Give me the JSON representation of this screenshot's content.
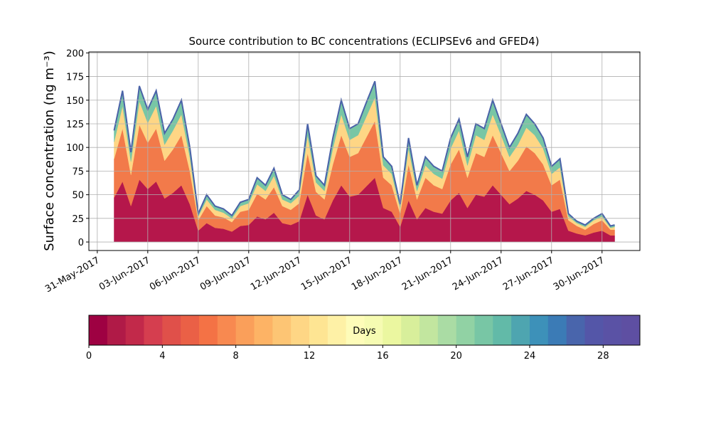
{
  "chart_data": {
    "type": "area",
    "title": "Source contribution to BC concentrations (ECLIPSEv6 and GFED4)",
    "ylabel": "Surface concentration (ng m⁻³)",
    "x": [
      1,
      1.5,
      2,
      2.5,
      3,
      3.5,
      4,
      4.5,
      5,
      5.5,
      6,
      6.5,
      7,
      7.5,
      8,
      8.5,
      9,
      9.5,
      10,
      10.5,
      11,
      11.5,
      12,
      12.5,
      13,
      13.5,
      14,
      14.5,
      15,
      15.5,
      16,
      16.5,
      17,
      17.5,
      18,
      18.5,
      19,
      19.5,
      20,
      20.5,
      21,
      21.5,
      22,
      22.5,
      23,
      23.5,
      24,
      24.5,
      25,
      25.5,
      26,
      26.5,
      27,
      27.5,
      28,
      28.5,
      29,
      29.5,
      30,
      30.5,
      30.75
    ],
    "xlim": [
      -0.5,
      32.25
    ],
    "xticks": [
      {
        "value": 0,
        "label": "31-May-2017"
      },
      {
        "value": 3,
        "label": "03-Jun-2017"
      },
      {
        "value": 6,
        "label": "06-Jun-2017"
      },
      {
        "value": 9,
        "label": "09-Jun-2017"
      },
      {
        "value": 12,
        "label": "12-Jun-2017"
      },
      {
        "value": 15,
        "label": "15-Jun-2017"
      },
      {
        "value": 18,
        "label": "18-Jun-2017"
      },
      {
        "value": 21,
        "label": "21-Jun-2017"
      },
      {
        "value": 24,
        "label": "24-Jun-2017"
      },
      {
        "value": 27,
        "label": "27-Jun-2017"
      },
      {
        "value": 30,
        "label": "30-Jun-2017"
      }
    ],
    "ylim": [
      -9,
      201
    ],
    "yticks": [
      0,
      25,
      50,
      75,
      100,
      125,
      150,
      175,
      200
    ],
    "grid": true,
    "series": [
      {
        "color": "#b5174b",
        "values": [
          47,
          64,
          38,
          66,
          56,
          64,
          46,
          52,
          60,
          40,
          12,
          20,
          15,
          14,
          11,
          17,
          18,
          27,
          24,
          31,
          20,
          18,
          22,
          50,
          28,
          24,
          44,
          60,
          48,
          50,
          59,
          68,
          36,
          32,
          16,
          44,
          24,
          36,
          32,
          30,
          44,
          52,
          36,
          50,
          48,
          60,
          50,
          40,
          46,
          54,
          50,
          44,
          32,
          35,
          12,
          9,
          7,
          10,
          12,
          7,
          7
        ]
      },
      {
        "color": "#f27a4a",
        "values": [
          41,
          56,
          33,
          58,
          49,
          56,
          40,
          46,
          53,
          35,
          11,
          18,
          13,
          12,
          10,
          15,
          16,
          24,
          21,
          27,
          18,
          16,
          19,
          44,
          25,
          21,
          38,
          53,
          42,
          44,
          52,
          60,
          32,
          28,
          14,
          38,
          21,
          32,
          28,
          26,
          38,
          46,
          32,
          44,
          42,
          53,
          44,
          35,
          40,
          47,
          44,
          38,
          28,
          31,
          11,
          8,
          6,
          9,
          11,
          6,
          6
        ]
      },
      {
        "color": "#fed685",
        "values": [
          18,
          24,
          14,
          25,
          21,
          24,
          17,
          20,
          22,
          15,
          4,
          7,
          6,
          5,
          4,
          6,
          7,
          10,
          9,
          12,
          7,
          7,
          8,
          19,
          10,
          9,
          17,
          22,
          18,
          19,
          22,
          25,
          13,
          12,
          6,
          17,
          9,
          13,
          12,
          11,
          17,
          20,
          13,
          19,
          18,
          22,
          19,
          15,
          17,
          20,
          19,
          17,
          12,
          13,
          4,
          3,
          3,
          4,
          4,
          2,
          3
        ]
      },
      {
        "color": "#78c6a5",
        "values": [
          12,
          16,
          10,
          16,
          14,
          16,
          12,
          12,
          15,
          10,
          3,
          5,
          4,
          4,
          3,
          4,
          4,
          7,
          6,
          8,
          5,
          4,
          6,
          12,
          7,
          6,
          11,
          15,
          12,
          12,
          15,
          17,
          9,
          8,
          4,
          11,
          6,
          9,
          8,
          8,
          11,
          12,
          9,
          12,
          12,
          15,
          12,
          10,
          12,
          14,
          12,
          11,
          8,
          9,
          3,
          2,
          2,
          2,
          3,
          2,
          2
        ]
      }
    ],
    "colorbar": {
      "label": "Days",
      "lim": [
        0,
        30
      ],
      "ticks": [
        0,
        4,
        8,
        12,
        16,
        20,
        24,
        28
      ],
      "colors": [
        "#9e0142",
        "#b01a47",
        "#c2294a",
        "#d53e4f",
        "#e0504a",
        "#ea6046",
        "#f47245",
        "#f88950",
        "#fa9f5a",
        "#fdb365",
        "#fdc574",
        "#fed685",
        "#fee593",
        "#fef1a6",
        "#fefcb9",
        "#f6fbb2",
        "#ebf7a0",
        "#d8ef9b",
        "#c2e69f",
        "#aadca4",
        "#91d2a4",
        "#78c6a5",
        "#62baa8",
        "#4ea5b0",
        "#3d91b9",
        "#3b7bb6",
        "#4965ac",
        "#5456a8",
        "#5a52a5",
        "#5e4fa2"
      ]
    }
  }
}
